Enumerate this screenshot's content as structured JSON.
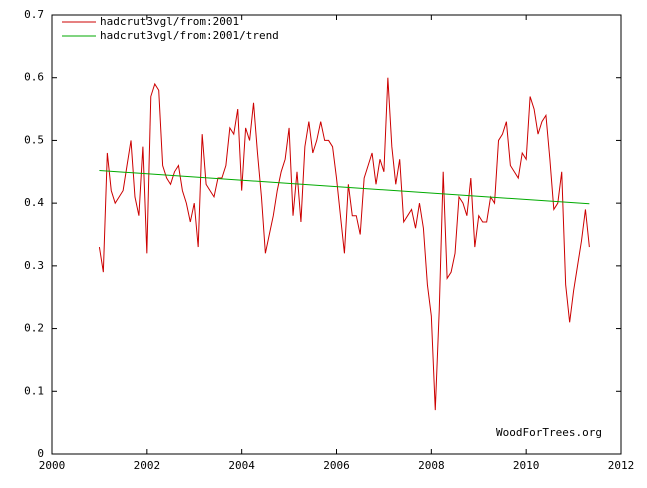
{
  "chart_data": {
    "type": "line",
    "annotation": "WoodForTrees.org",
    "xlim": [
      2000,
      2012
    ],
    "xticks": [
      2000,
      2002,
      2004,
      2006,
      2008,
      2010,
      2012
    ],
    "ylim": [
      0,
      0.7
    ],
    "yticks": [
      0,
      0.1,
      0.2,
      0.3,
      0.4,
      0.5,
      0.6,
      0.7
    ],
    "legend": "top-left",
    "series": [
      {
        "name": "hadcrut3vgl/from:2001",
        "color": "#cc0000",
        "x": [
          2001,
          2001.083,
          2001.167,
          2001.25,
          2001.333,
          2001.417,
          2001.5,
          2001.583,
          2001.667,
          2001.75,
          2001.833,
          2001.917,
          2002,
          2002.083,
          2002.167,
          2002.25,
          2002.333,
          2002.417,
          2002.5,
          2002.583,
          2002.667,
          2002.75,
          2002.833,
          2002.917,
          2003,
          2003.083,
          2003.167,
          2003.25,
          2003.333,
          2003.417,
          2003.5,
          2003.583,
          2003.667,
          2003.75,
          2003.833,
          2003.917,
          2004,
          2004.083,
          2004.167,
          2004.25,
          2004.333,
          2004.417,
          2004.5,
          2004.583,
          2004.667,
          2004.75,
          2004.833,
          2004.917,
          2005,
          2005.083,
          2005.167,
          2005.25,
          2005.333,
          2005.417,
          2005.5,
          2005.583,
          2005.667,
          2005.75,
          2005.833,
          2005.917,
          2006,
          2006.083,
          2006.167,
          2006.25,
          2006.333,
          2006.417,
          2006.5,
          2006.583,
          2006.667,
          2006.75,
          2006.833,
          2006.917,
          2007,
          2007.083,
          2007.167,
          2007.25,
          2007.333,
          2007.417,
          2007.5,
          2007.583,
          2007.667,
          2007.75,
          2007.833,
          2007.917,
          2008,
          2008.083,
          2008.167,
          2008.25,
          2008.333,
          2008.417,
          2008.5,
          2008.583,
          2008.667,
          2008.75,
          2008.833,
          2008.917,
          2009,
          2009.083,
          2009.167,
          2009.25,
          2009.333,
          2009.417,
          2009.5,
          2009.583,
          2009.667,
          2009.75,
          2009.833,
          2009.917,
          2010,
          2010.083,
          2010.167,
          2010.25,
          2010.333,
          2010.417,
          2010.5,
          2010.583,
          2010.667,
          2010.75,
          2010.833,
          2010.917,
          2011,
          2011.083,
          2011.167,
          2011.25,
          2011.333
        ],
        "values": [
          0.33,
          0.29,
          0.48,
          0.42,
          0.4,
          0.41,
          0.42,
          0.46,
          0.5,
          0.41,
          0.38,
          0.49,
          0.32,
          0.57,
          0.59,
          0.58,
          0.46,
          0.44,
          0.43,
          0.45,
          0.46,
          0.42,
          0.4,
          0.37,
          0.4,
          0.33,
          0.51,
          0.43,
          0.42,
          0.41,
          0.44,
          0.44,
          0.46,
          0.52,
          0.51,
          0.55,
          0.42,
          0.52,
          0.5,
          0.56,
          0.48,
          0.41,
          0.32,
          0.35,
          0.38,
          0.42,
          0.45,
          0.47,
          0.52,
          0.38,
          0.45,
          0.37,
          0.49,
          0.53,
          0.48,
          0.5,
          0.53,
          0.5,
          0.5,
          0.49,
          0.44,
          0.38,
          0.32,
          0.43,
          0.38,
          0.38,
          0.35,
          0.44,
          0.46,
          0.48,
          0.43,
          0.47,
          0.45,
          0.6,
          0.49,
          0.43,
          0.47,
          0.37,
          0.38,
          0.39,
          0.36,
          0.4,
          0.36,
          0.27,
          0.22,
          0.07,
          0.23,
          0.45,
          0.28,
          0.29,
          0.32,
          0.41,
          0.4,
          0.38,
          0.44,
          0.33,
          0.38,
          0.37,
          0.37,
          0.41,
          0.4,
          0.5,
          0.51,
          0.53,
          0.46,
          0.45,
          0.44,
          0.48,
          0.47,
          0.57,
          0.55,
          0.51,
          0.53,
          0.54,
          0.47,
          0.39,
          0.4,
          0.45,
          0.27,
          0.21,
          0.26,
          0.3,
          0.34,
          0.39,
          0.33
        ]
      },
      {
        "name": "hadcrut3vgl/from:2001/trend",
        "color": "#00aa00",
        "x": [
          2001,
          2011.333
        ],
        "values": [
          0.452,
          0.399
        ]
      }
    ]
  }
}
